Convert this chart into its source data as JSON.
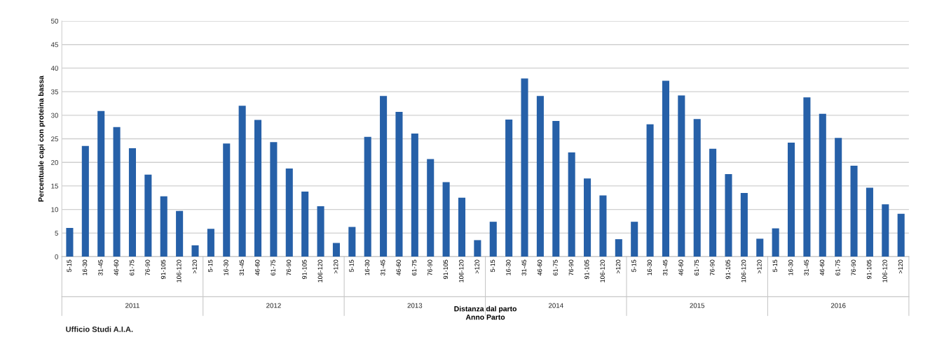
{
  "chart_data": {
    "type": "bar",
    "ylabel": "Percentuale capi con proteina bassa",
    "xlabel": "Distanza dal parto\nAnno Parto",
    "categories": [
      "5-15",
      "16-30",
      "31-45",
      "46-60",
      "61-75",
      "76-90",
      "91-105",
      "106-120",
      ">120",
      "5-15",
      "16-30",
      "31-45",
      "46-60",
      "61-75",
      "76-90",
      "91-105",
      "106-120",
      ">120",
      "5-15",
      "16-30",
      "31-45",
      "46-60",
      "61-75",
      "76-90",
      "91-105",
      "106-120",
      ">120",
      "5-15",
      "16-30",
      "31-45",
      "46-60",
      "61-75",
      "76-90",
      "91-105",
      "106-120",
      ">120",
      "5-15",
      "16-30",
      "31-45",
      "46-60",
      "61-75",
      "76-90",
      "91-105",
      "106-120",
      ">120",
      "5-15",
      "16-30",
      "31-45",
      "46-60",
      "61-75",
      "76-90",
      "91-105",
      "106-120",
      ">120"
    ],
    "values": [
      6.1,
      23.5,
      30.9,
      27.5,
      23.0,
      17.4,
      12.8,
      9.7,
      2.4,
      5.9,
      24.0,
      32.0,
      29.0,
      24.3,
      18.7,
      13.8,
      10.7,
      2.9,
      6.3,
      25.4,
      34.1,
      30.7,
      26.1,
      20.7,
      15.8,
      12.5,
      3.5,
      7.4,
      29.1,
      37.8,
      34.1,
      28.8,
      22.1,
      16.6,
      13.0,
      3.7,
      7.4,
      28.1,
      37.3,
      34.2,
      29.2,
      22.9,
      17.5,
      13.5,
      3.8,
      6.0,
      24.2,
      33.8,
      30.3,
      25.2,
      19.3,
      14.6,
      11.1,
      9.1
    ],
    "color": "#2660a8",
    "ylim": [
      0,
      50
    ],
    "yticks": [
      0,
      5,
      10,
      15,
      20,
      25,
      30,
      35,
      40,
      45,
      50
    ],
    "grid": "y",
    "annotations": [
      "2011",
      "2012",
      "2013",
      "2014",
      "2015",
      "2016",
      "Ufficio Studi A.I.A."
    ]
  }
}
